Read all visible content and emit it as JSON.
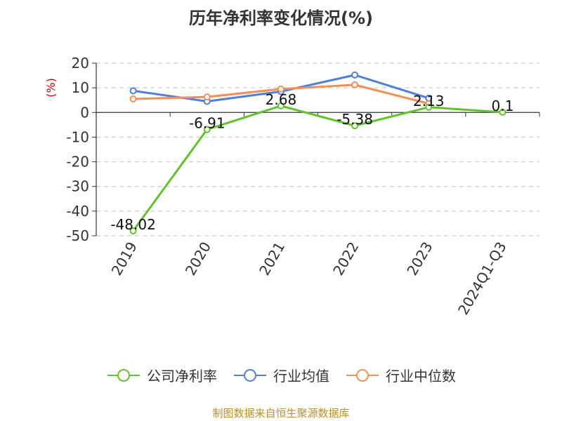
{
  "chart_data": {
    "type": "line",
    "title": "历年净利率变化情况(%)",
    "ylabel": "(%)",
    "xlabel": "",
    "categories": [
      "2019",
      "2020",
      "2021",
      "2022",
      "2023",
      "2024Q1-Q3"
    ],
    "ylim": [
      -50,
      20
    ],
    "yticks": [
      20,
      10,
      0,
      -10,
      -20,
      -30,
      -40,
      -50
    ],
    "grid": true,
    "legend_position": "bottom",
    "series": [
      {
        "name": "公司净利率",
        "color": "#5fc42b",
        "values": [
          -48.02,
          -6.91,
          2.68,
          -5.38,
          2.13,
          0.1
        ],
        "labels": [
          "-48.02",
          "-6.91",
          "2.68",
          "-5.38",
          "2.13",
          "0.1"
        ]
      },
      {
        "name": "行业均值",
        "color": "#4f7fdc",
        "values": [
          8.8,
          4.5,
          8.5,
          15.2,
          5.8,
          null
        ]
      },
      {
        "name": "行业中位数",
        "color": "#f28f55",
        "values": [
          5.5,
          6.3,
          9.5,
          11.2,
          3.6,
          null
        ]
      }
    ]
  },
  "source": "制图数据来自恒生聚源数据库"
}
